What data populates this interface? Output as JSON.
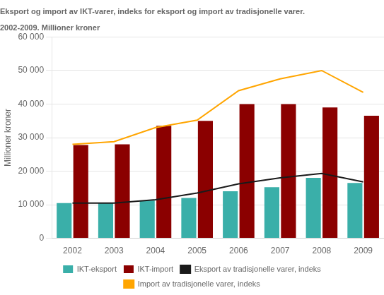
{
  "chart_data": {
    "type": "bar",
    "title": "Eksport og import av IKT-varer, indeks for eksport og import av tradisjonelle varer.",
    "subtitle": "2002-2009. Millioner kroner",
    "ylabel": "Millioner kroner",
    "categories": [
      "2002",
      "2003",
      "2004",
      "2005",
      "2006",
      "2007",
      "2008",
      "2009"
    ],
    "series": [
      {
        "name": "IKT-eksport",
        "type": "bar",
        "color": "#3aafa9",
        "values": [
          10500,
          10500,
          11200,
          12000,
          14000,
          15200,
          18000,
          16500
        ]
      },
      {
        "name": "IKT-import",
        "type": "bar",
        "color": "#8b0000",
        "values": [
          27800,
          28000,
          33500,
          35000,
          40000,
          40000,
          39000,
          36500
        ]
      },
      {
        "name": "Eksport av tradisjonelle varer, indeks",
        "type": "line",
        "color": "#1a1a1a",
        "values": [
          10500,
          10500,
          11500,
          13500,
          16200,
          18000,
          19300,
          16800
        ]
      },
      {
        "name": "Import av tradisjonelle varer, indeks",
        "type": "line",
        "color": "#ffa500",
        "values": [
          28000,
          28800,
          33000,
          35200,
          44000,
          47500,
          50000,
          43500
        ]
      }
    ],
    "ylim": [
      0,
      60000
    ],
    "yticks": [
      0,
      {
        "value": 10000,
        "label": "10 000"
      },
      {
        "value": 20000,
        "label": "20 000"
      },
      {
        "value": 30000,
        "label": "30 000"
      },
      {
        "value": 40000,
        "label": "40 000"
      },
      {
        "value": 50000,
        "label": "50 000"
      },
      {
        "value": 60000,
        "label": "60 000"
      }
    ],
    "grid": true,
    "legend": "bottom"
  }
}
